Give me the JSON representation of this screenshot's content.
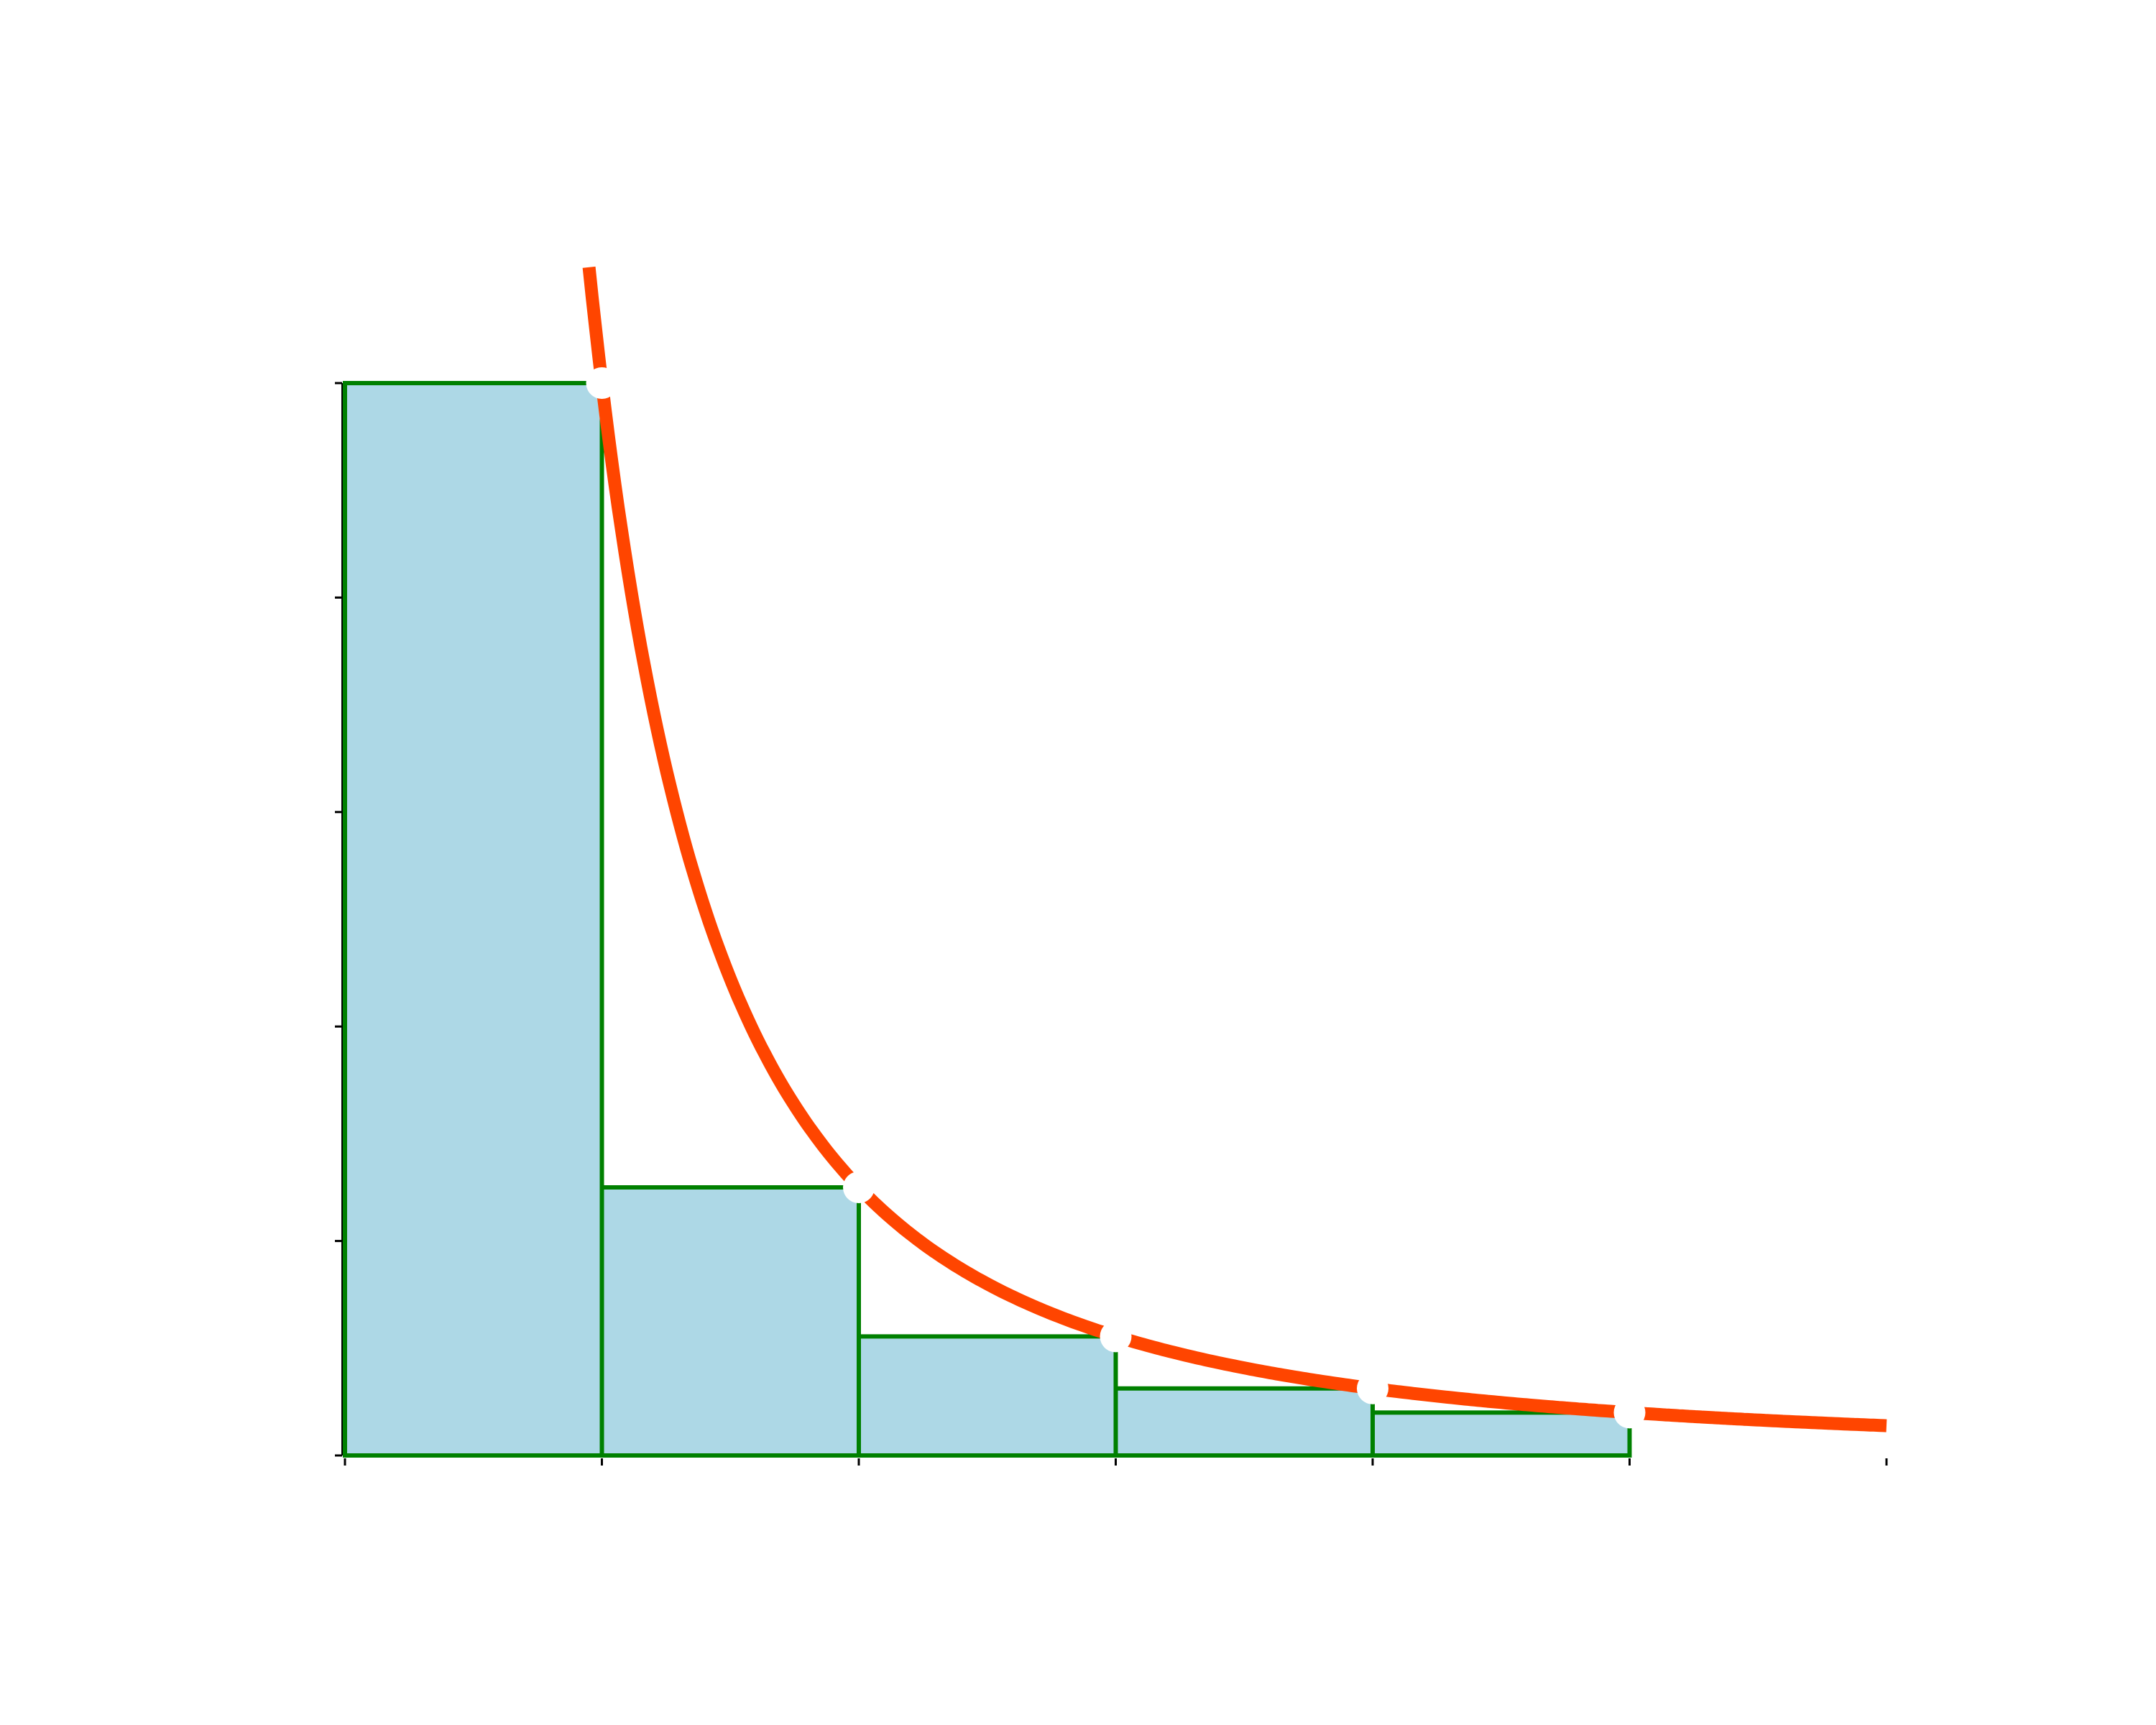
{
  "chart_data": {
    "type": "bar",
    "description_free": true,
    "x": [
      0,
      1,
      2,
      3,
      4,
      5,
      6
    ],
    "xlim": [
      0,
      6
    ],
    "ylim": [
      0,
      1
    ],
    "grid": false,
    "bars": [
      {
        "x0": 0,
        "x1": 1,
        "value": 1.0
      },
      {
        "x0": 1,
        "x1": 2,
        "value": 0.25
      },
      {
        "x0": 2,
        "x1": 3,
        "value": 0.111
      },
      {
        "x0": 3,
        "x1": 4,
        "value": 0.0625
      },
      {
        "x0": 4,
        "x1": 5,
        "value": 0.04
      }
    ],
    "curve": {
      "function": "1/x^2",
      "x_start": 0.95,
      "x_end": 6.0
    },
    "points": [
      {
        "x": 1,
        "y": 1.0
      },
      {
        "x": 2,
        "y": 0.25
      },
      {
        "x": 3,
        "y": 0.111
      },
      {
        "x": 4,
        "y": 0.0625
      },
      {
        "x": 5,
        "y": 0.04
      }
    ],
    "y_ticks": [
      0,
      0.2,
      0.4,
      0.6,
      0.8,
      1.0
    ],
    "x_ticks": [
      0,
      1,
      2,
      3,
      4,
      5,
      6
    ],
    "colors": {
      "bar_fill": "#add8e6",
      "bar_edge": "#008000",
      "curve": "#ff4500",
      "points": "#ffffff",
      "axes": "#000000"
    }
  }
}
